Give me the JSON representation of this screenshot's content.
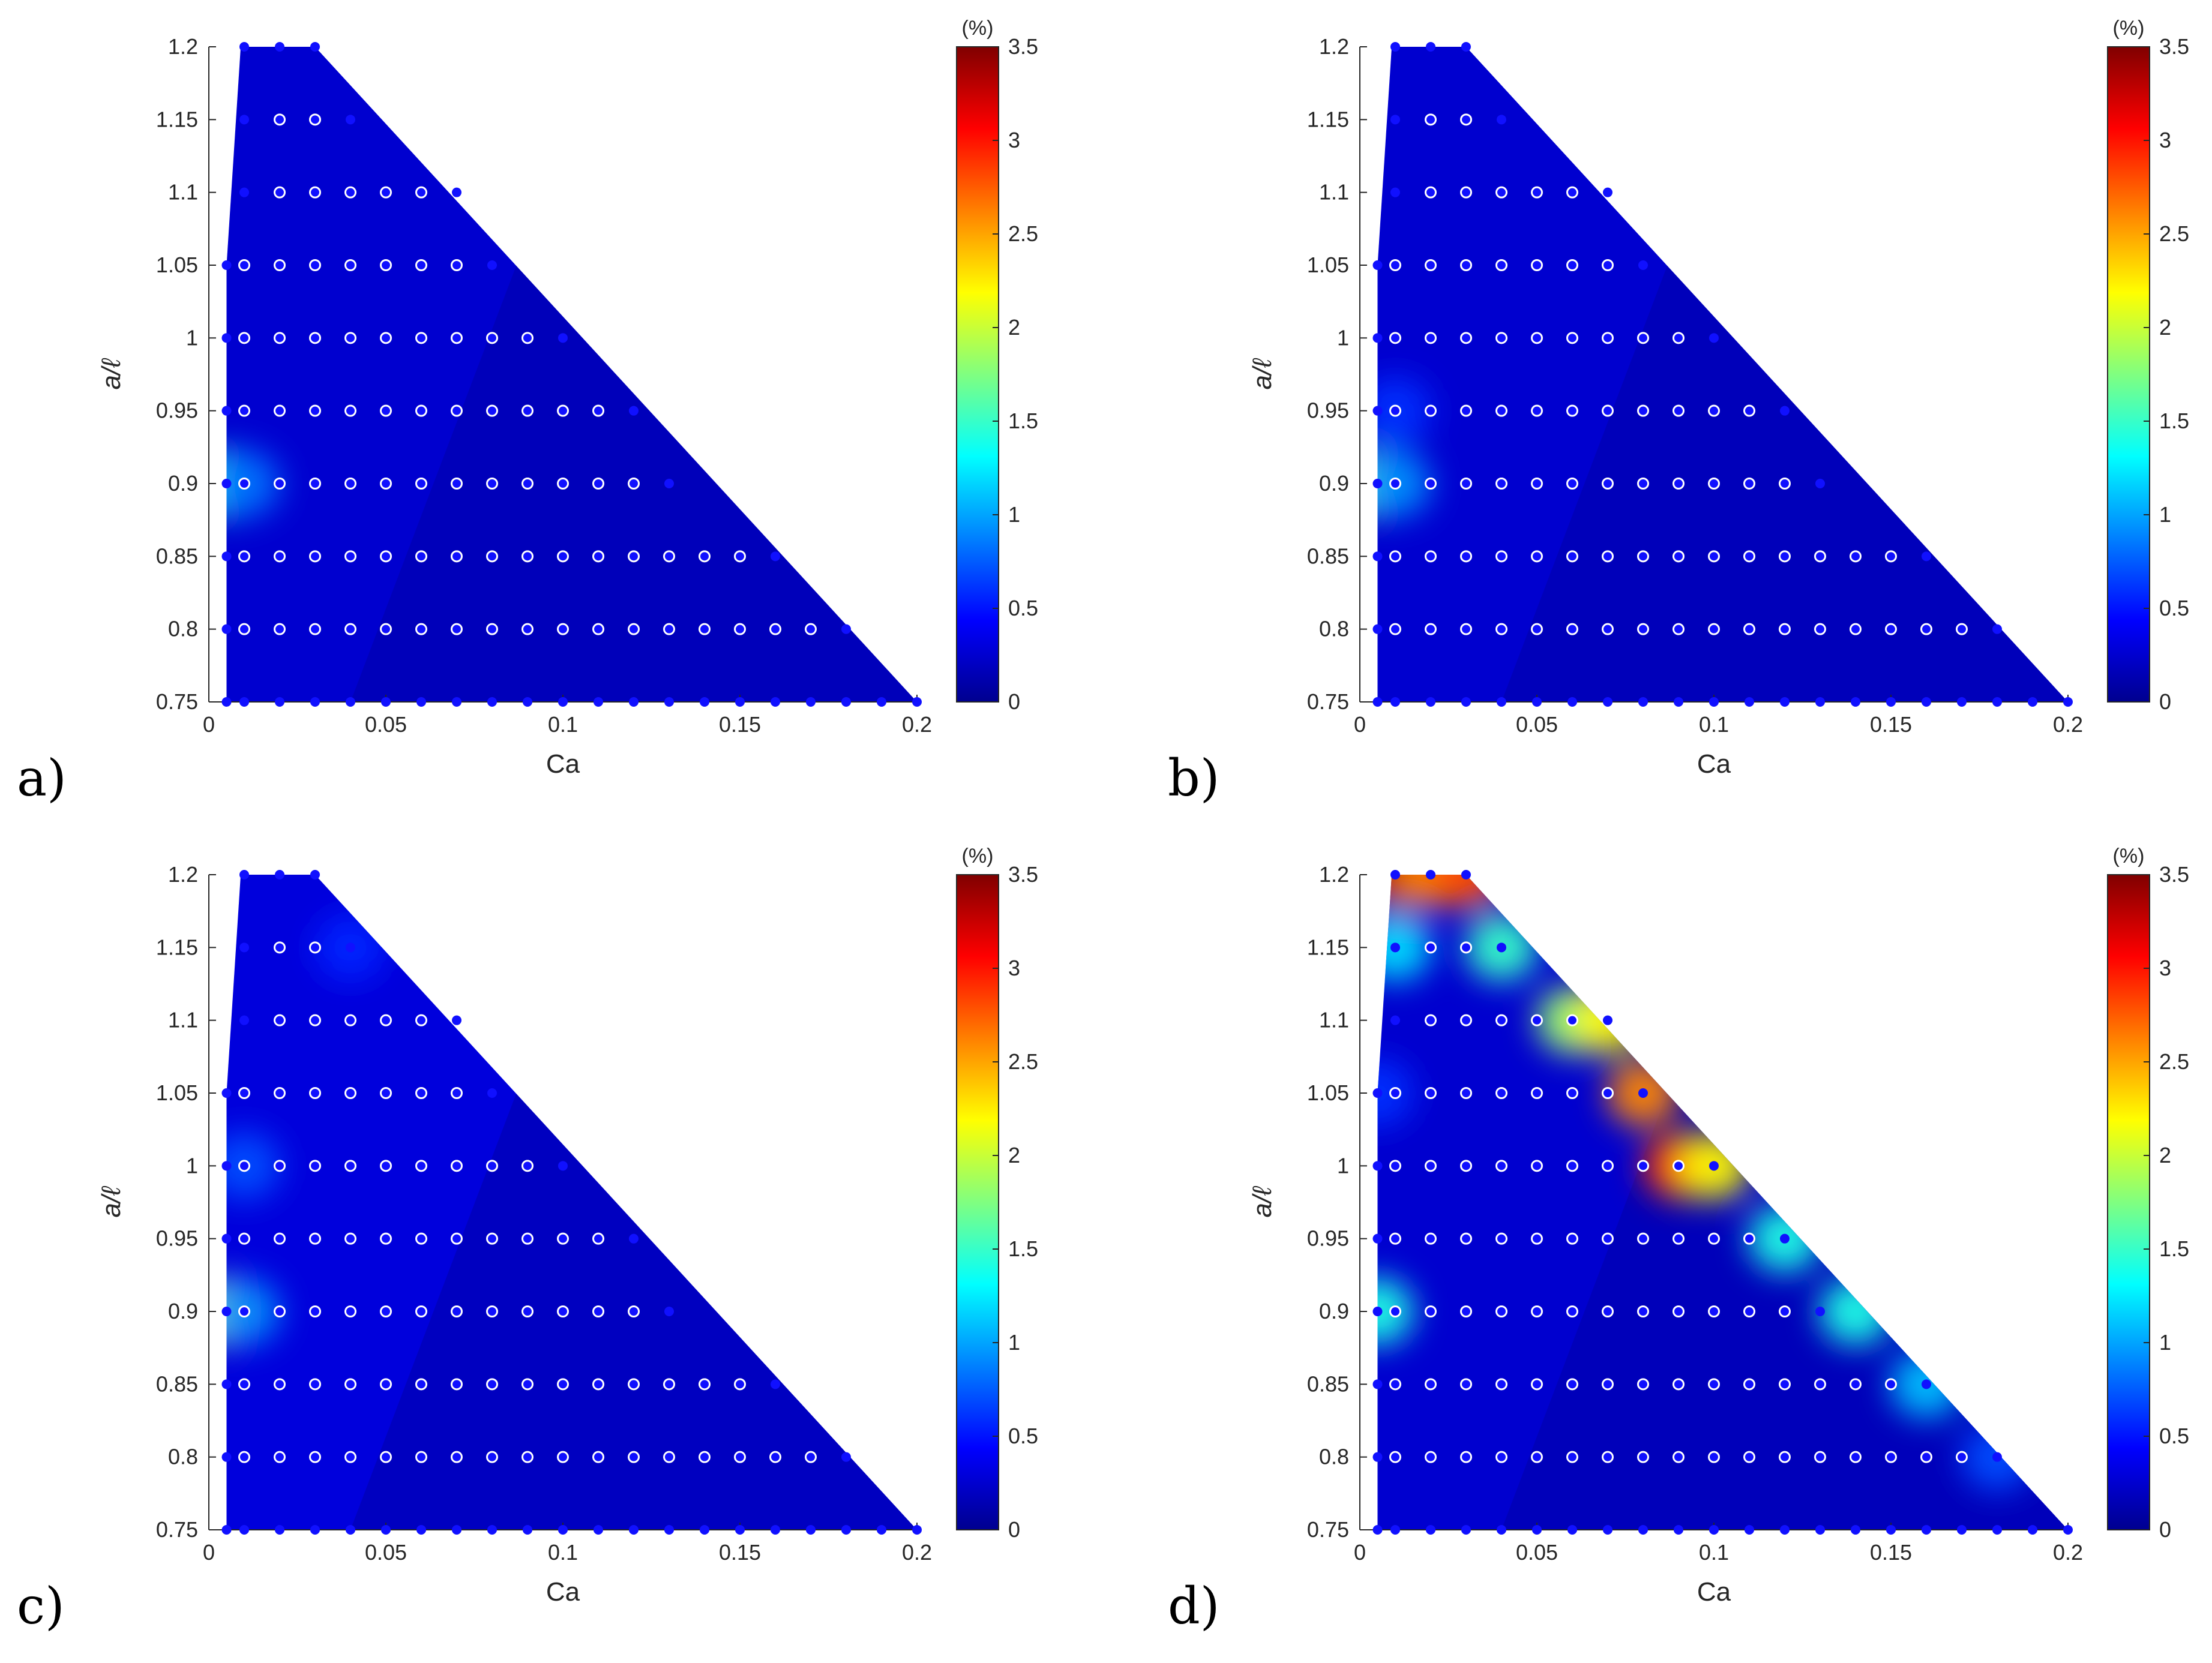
{
  "figure": {
    "panel_letters": [
      "a)",
      "b)",
      "c)",
      "d)"
    ],
    "colormap": "jet",
    "colormap_stops": [
      "#00008f",
      "#0000ff",
      "#0080ff",
      "#00ffff",
      "#80ff80",
      "#ffff00",
      "#ff8000",
      "#ff0000",
      "#800000"
    ],
    "point_fill": "#1010ff",
    "hollow_point_stroke": "#ffffff"
  },
  "chart_data": [
    {
      "type": "heatmap",
      "panel": "a)",
      "xlabel": "Ca",
      "ylabel": "a/ℓ",
      "xlim": [
        0,
        0.2
      ],
      "ylim": [
        0.75,
        1.2
      ],
      "x_ticks": [
        "0",
        "0.05",
        "0.1",
        "0.15",
        "0.2"
      ],
      "y_ticks": [
        "0.75",
        "0.8",
        "0.85",
        "0.9",
        "0.95",
        "1",
        "1.05",
        "1.1",
        "1.15",
        "1.2"
      ],
      "colorbar": {
        "unit": "(%)",
        "range": [
          0,
          3.5
        ],
        "ticks": [
          "0",
          "0.5",
          "1",
          "1.5",
          "2",
          "2.5",
          "3",
          "3.5"
        ]
      },
      "domain_boundary": [
        [
          0.005,
          0.75
        ],
        [
          0.005,
          1.05
        ],
        [
          0.009,
          1.2
        ],
        [
          0.03,
          1.2
        ],
        [
          0.2,
          0.75
        ]
      ],
      "hotspots": [
        {
          "ca": 0.005,
          "a": 0.9,
          "value": 1.5
        },
        {
          "ca": 0.01,
          "a": 0.9,
          "value": 0.8
        }
      ],
      "background_value": 0.25
    },
    {
      "type": "heatmap",
      "panel": "b)",
      "xlabel": "Ca",
      "ylabel": "a/ℓ",
      "xlim": [
        0,
        0.2
      ],
      "ylim": [
        0.75,
        1.2
      ],
      "x_ticks": [
        "0",
        "0.05",
        "0.1",
        "0.15",
        "0.2"
      ],
      "y_ticks": [
        "0.75",
        "0.8",
        "0.85",
        "0.9",
        "0.95",
        "1",
        "1.05",
        "1.1",
        "1.15",
        "1.2"
      ],
      "colorbar": {
        "unit": "(%)",
        "range": [
          0,
          3.5
        ],
        "ticks": [
          "0",
          "0.5",
          "1",
          "1.5",
          "2",
          "2.5",
          "3",
          "3.5"
        ]
      },
      "domain_boundary": [
        [
          0.005,
          0.75
        ],
        [
          0.005,
          1.05
        ],
        [
          0.009,
          1.2
        ],
        [
          0.03,
          1.2
        ],
        [
          0.2,
          0.75
        ]
      ],
      "hotspots": [
        {
          "ca": 0.005,
          "a": 0.9,
          "value": 1.6
        },
        {
          "ca": 0.01,
          "a": 0.9,
          "value": 0.9
        },
        {
          "ca": 0.01,
          "a": 0.95,
          "value": 0.6
        }
      ],
      "background_value": 0.25
    },
    {
      "type": "heatmap",
      "panel": "c)",
      "xlabel": "Ca",
      "ylabel": "a/ℓ",
      "xlim": [
        0,
        0.2
      ],
      "ylim": [
        0.75,
        1.2
      ],
      "x_ticks": [
        "0",
        "0.05",
        "0.1",
        "0.15",
        "0.2"
      ],
      "y_ticks": [
        "0.75",
        "0.8",
        "0.85",
        "0.9",
        "0.95",
        "1",
        "1.05",
        "1.1",
        "1.15",
        "1.2"
      ],
      "colorbar": {
        "unit": "(%)",
        "range": [
          0,
          3.5
        ],
        "ticks": [
          "0",
          "0.5",
          "1",
          "1.5",
          "2",
          "2.5",
          "3",
          "3.5"
        ]
      },
      "domain_boundary": [
        [
          0.005,
          0.75
        ],
        [
          0.005,
          1.05
        ],
        [
          0.009,
          1.2
        ],
        [
          0.03,
          1.2
        ],
        [
          0.2,
          0.75
        ]
      ],
      "hotspots": [
        {
          "ca": 0.005,
          "a": 0.9,
          "value": 1.8
        },
        {
          "ca": 0.01,
          "a": 0.9,
          "value": 0.9
        },
        {
          "ca": 0.01,
          "a": 1.0,
          "value": 0.7
        },
        {
          "ca": 0.04,
          "a": 1.15,
          "value": 0.55
        }
      ],
      "background_value": 0.3
    },
    {
      "type": "heatmap",
      "panel": "d)",
      "xlabel": "Ca",
      "ylabel": "a/ℓ",
      "xlim": [
        0,
        0.2
      ],
      "ylim": [
        0.75,
        1.2
      ],
      "x_ticks": [
        "0",
        "0.05",
        "0.1",
        "0.15",
        "0.2"
      ],
      "y_ticks": [
        "0.75",
        "0.8",
        "0.85",
        "0.9",
        "0.95",
        "1",
        "1.05",
        "1.1",
        "1.15",
        "1.2"
      ],
      "colorbar": {
        "unit": "(%)",
        "range": [
          0,
          3.5
        ],
        "ticks": [
          "0",
          "0.5",
          "1",
          "1.5",
          "2",
          "2.5",
          "3",
          "3.5"
        ]
      },
      "domain_boundary": [
        [
          0.005,
          0.75
        ],
        [
          0.005,
          1.05
        ],
        [
          0.009,
          1.2
        ],
        [
          0.03,
          1.2
        ],
        [
          0.2,
          0.75
        ]
      ],
      "hotspots": [
        {
          "ca": 0.01,
          "a": 1.2,
          "value": 3.3
        },
        {
          "ca": 0.02,
          "a": 1.2,
          "value": 2.6
        },
        {
          "ca": 0.03,
          "a": 1.2,
          "value": 2.8
        },
        {
          "ca": 0.01,
          "a": 1.15,
          "value": 1.2
        },
        {
          "ca": 0.04,
          "a": 1.15,
          "value": 1.5
        },
        {
          "ca": 0.06,
          "a": 1.1,
          "value": 1.8
        },
        {
          "ca": 0.07,
          "a": 1.1,
          "value": 2.2
        },
        {
          "ca": 0.08,
          "a": 1.05,
          "value": 2.6
        },
        {
          "ca": 0.09,
          "a": 1.0,
          "value": 2.9
        },
        {
          "ca": 0.1,
          "a": 1.0,
          "value": 2.2
        },
        {
          "ca": 0.12,
          "a": 0.95,
          "value": 1.4
        },
        {
          "ca": 0.14,
          "a": 0.9,
          "value": 1.4
        },
        {
          "ca": 0.16,
          "a": 0.85,
          "value": 1.1
        },
        {
          "ca": 0.18,
          "a": 0.8,
          "value": 0.7
        },
        {
          "ca": 0.005,
          "a": 0.9,
          "value": 1.4
        },
        {
          "ca": 0.005,
          "a": 1.05,
          "value": 0.6
        }
      ],
      "background_value": 0.25
    }
  ],
  "grid_points": {
    "rows": [
      {
        "a": 1.2,
        "ca": [
          0.01,
          0.02,
          0.03
        ]
      },
      {
        "a": 1.15,
        "ca": [
          0.01,
          0.02,
          0.03,
          0.04
        ]
      },
      {
        "a": 1.1,
        "ca": [
          0.01,
          0.02,
          0.03,
          0.04,
          0.05,
          0.06,
          0.07
        ]
      },
      {
        "a": 1.05,
        "ca": [
          0.005,
          0.01,
          0.02,
          0.03,
          0.04,
          0.05,
          0.06,
          0.07,
          0.08
        ]
      },
      {
        "a": 1.0,
        "ca": [
          0.005,
          0.01,
          0.02,
          0.03,
          0.04,
          0.05,
          0.06,
          0.07,
          0.08,
          0.09,
          0.1
        ]
      },
      {
        "a": 0.95,
        "ca": [
          0.005,
          0.01,
          0.02,
          0.03,
          0.04,
          0.05,
          0.06,
          0.07,
          0.08,
          0.09,
          0.1,
          0.11,
          0.12
        ]
      },
      {
        "a": 0.9,
        "ca": [
          0.005,
          0.01,
          0.02,
          0.03,
          0.04,
          0.05,
          0.06,
          0.07,
          0.08,
          0.09,
          0.1,
          0.11,
          0.12,
          0.13
        ]
      },
      {
        "a": 0.85,
        "ca": [
          0.005,
          0.01,
          0.02,
          0.03,
          0.04,
          0.05,
          0.06,
          0.07,
          0.08,
          0.09,
          0.1,
          0.11,
          0.12,
          0.13,
          0.14,
          0.15,
          0.16
        ]
      },
      {
        "a": 0.8,
        "ca": [
          0.005,
          0.01,
          0.02,
          0.03,
          0.04,
          0.05,
          0.06,
          0.07,
          0.08,
          0.09,
          0.1,
          0.11,
          0.12,
          0.13,
          0.14,
          0.15,
          0.16,
          0.17,
          0.18
        ]
      },
      {
        "a": 0.75,
        "ca": [
          0.005,
          0.01,
          0.02,
          0.03,
          0.04,
          0.05,
          0.06,
          0.07,
          0.08,
          0.09,
          0.1,
          0.11,
          0.12,
          0.13,
          0.14,
          0.15,
          0.16,
          0.17,
          0.18,
          0.19,
          0.2
        ]
      }
    ],
    "filled_rule": "boundary points (first/last of each row and whole bottom row) are filled; interior points are hollow"
  }
}
